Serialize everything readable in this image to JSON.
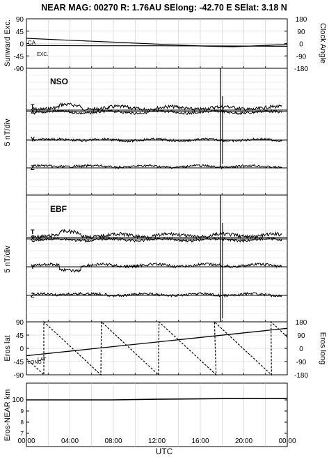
{
  "header": {
    "title": "NEAR MAG: 00270  R: 1.76AU  SElong:  -42.70 E  SElat:    3.18 N"
  },
  "panels": {
    "angles": {
      "left_label": "Sunward Exc.",
      "right_label": "Clock Angle",
      "left_ticks": [
        "90",
        "45",
        "0",
        "-45",
        "-90"
      ],
      "right_ticks": [
        "180",
        "90",
        "0",
        "-90",
        "-180"
      ],
      "curve_labels": [
        "CA",
        "EXC."
      ]
    },
    "nso": {
      "name": "NSO",
      "ylabel": "5 nT/div",
      "components": [
        "T",
        "X",
        "Y",
        "Z"
      ]
    },
    "ebf": {
      "name": "EBF",
      "ylabel": "5 nT/div",
      "components": [
        "T",
        "X",
        "Y",
        "Z"
      ]
    },
    "eros": {
      "left_label": "Eros lat",
      "right_label": "Eros long",
      "left_ticks": [
        "90",
        "45",
        "0",
        "-45",
        "-90"
      ],
      "right_ticks": [
        "180",
        "90",
        "0",
        "-90",
        "-180"
      ],
      "curve_labels": [
        "LONG",
        "LAT"
      ]
    },
    "range": {
      "ylabel": "Eros-NEAR km",
      "ticks": [
        "100",
        "9",
        "8",
        "7"
      ]
    }
  },
  "xaxis": {
    "label": "UTC",
    "ticks": [
      "00:00",
      "04:00",
      "08:00",
      "12:00",
      "16:00",
      "20:00",
      "00:00"
    ]
  },
  "chart_data": {
    "type": "line",
    "x_unit": "UTC hour",
    "xlim": [
      0,
      24
    ],
    "angles_panel": {
      "series": [
        {
          "name": "CA",
          "axis": "right",
          "ylim": [
            -180,
            180
          ],
          "x": [
            0,
            4,
            8,
            12,
            16,
            19,
            24
          ],
          "values": [
            38,
            24,
            10,
            -4,
            -18,
            -24,
            -6
          ]
        },
        {
          "name": "EXC.",
          "axis": "left",
          "ylim": [
            -90,
            90
          ],
          "x": [
            0,
            6,
            12,
            18,
            24
          ],
          "values": [
            -7,
            -8,
            -8,
            -9,
            -10
          ]
        }
      ]
    },
    "eros_panel": {
      "series": [
        {
          "name": "LAT",
          "axis": "left",
          "ylim": [
            -90,
            90
          ],
          "x": [
            0,
            24
          ],
          "values": [
            -25,
            68
          ]
        },
        {
          "name": "LONG",
          "axis": "right",
          "ylim": [
            -180,
            180
          ],
          "style": "sawtooth",
          "wrap_hours": [
            1.6,
            6.9,
            12.2,
            17.3,
            22.5
          ],
          "period_hours": 5.25
        }
      ]
    },
    "range_panel": {
      "series": [
        {
          "name": "range",
          "x": [
            0,
            8,
            12,
            18,
            24
          ],
          "values": [
            100,
            100,
            100.3,
            100.6,
            100.6
          ]
        }
      ]
    },
    "spike_hour": 17.85
  }
}
